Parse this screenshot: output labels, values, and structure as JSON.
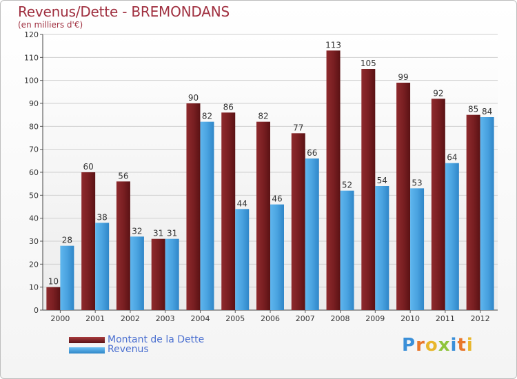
{
  "title": "Revenus/Dette - BREMONDANS",
  "subtitle": "(en milliers d'€)",
  "legend": {
    "debt": "Montant de la Dette",
    "revenue": "Revenus"
  },
  "logo": "Proxiti",
  "colors": {
    "debt": "#7a1f22",
    "revenue": "#4aa3e0",
    "title": "#a03040",
    "legend_text": "#4a6fd0"
  },
  "chart_data": {
    "type": "bar",
    "title": "Revenus/Dette - BREMONDANS",
    "subtitle": "(en milliers d'€)",
    "categories": [
      "2000",
      "2001",
      "2002",
      "2003",
      "2004",
      "2005",
      "2006",
      "2007",
      "2008",
      "2009",
      "2010",
      "2011",
      "2012"
    ],
    "series": [
      {
        "name": "Montant de la Dette",
        "values": [
          10,
          60,
          56,
          31,
          90,
          86,
          82,
          77,
          113,
          105,
          99,
          92,
          85
        ]
      },
      {
        "name": "Revenus",
        "values": [
          28,
          38,
          32,
          31,
          82,
          44,
          46,
          66,
          52,
          54,
          53,
          64,
          84
        ]
      }
    ],
    "yticks": [
      0,
      10,
      20,
      30,
      40,
      50,
      60,
      70,
      80,
      90,
      100,
      110,
      120
    ],
    "ylim": [
      0,
      120
    ],
    "grid": true,
    "legend_position": "bottom-left"
  }
}
